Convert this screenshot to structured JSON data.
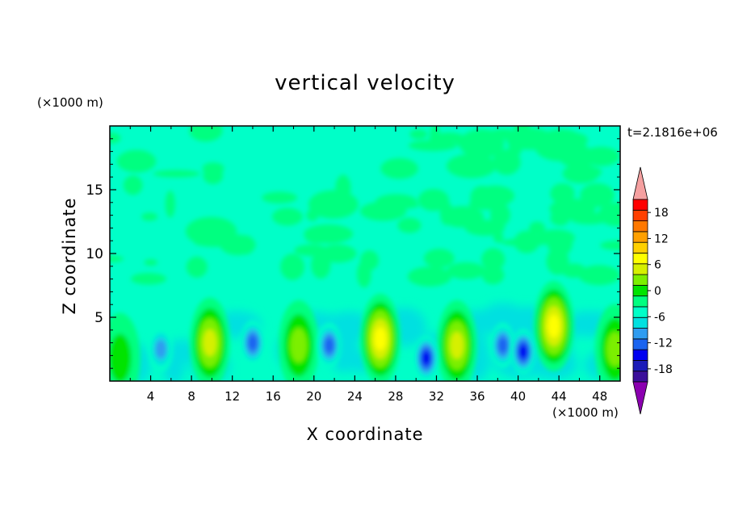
{
  "chart_data": {
    "type": "heatmap",
    "title": "vertical velocity",
    "xlabel": "X coordinate",
    "ylabel": "Z coordinate",
    "x_unit_label": "(×1000 m)",
    "y_unit_label": "(×1000 m)",
    "time_label": "t=2.1816e+06",
    "xlim": [
      0,
      50
    ],
    "ylim": [
      0,
      20
    ],
    "x_ticks": [
      4,
      8,
      12,
      16,
      20,
      24,
      28,
      32,
      36,
      40,
      44,
      48
    ],
    "y_ticks": [
      5,
      10,
      15
    ],
    "colorbar": {
      "range": [
        -21,
        21
      ],
      "step": 3,
      "tick_labels": [
        "18",
        "12",
        "6",
        "0",
        "-6",
        "-12",
        "-18"
      ],
      "tick_values": [
        18,
        12,
        6,
        0,
        -6,
        -12,
        -18
      ],
      "colors": [
        "#8b00b0",
        "#3b0f9a",
        "#1c1cb8",
        "#0000f0",
        "#1a64f0",
        "#2f9cf0",
        "#00e0e0",
        "#00ffc8",
        "#00ff80",
        "#00e400",
        "#7cef00",
        "#d6f000",
        "#ffff00",
        "#ffd000",
        "#ffa000",
        "#ff7800",
        "#ff4000",
        "#ff0000",
        "#f5a0a0"
      ]
    },
    "updraft_cells": [
      {
        "x": 1,
        "z": 1.8,
        "w": 5
      },
      {
        "x": 9.8,
        "z": 3.0,
        "w": 10
      },
      {
        "x": 18.5,
        "z": 2.8,
        "w": 6
      },
      {
        "x": 26.5,
        "z": 3.3,
        "w": 12
      },
      {
        "x": 34,
        "z": 2.8,
        "w": 10
      },
      {
        "x": 43.5,
        "z": 4.3,
        "w": 13
      },
      {
        "x": 49.5,
        "z": 2.5,
        "w": 7
      }
    ],
    "downdraft_cells": [
      {
        "x": 5,
        "z": 2.5,
        "w": -6
      },
      {
        "x": 14,
        "z": 3.0,
        "w": -11
      },
      {
        "x": 21.5,
        "z": 2.8,
        "w": -11
      },
      {
        "x": 31,
        "z": 1.8,
        "w": -12
      },
      {
        "x": 38.5,
        "z": 2.8,
        "w": -9
      },
      {
        "x": 40.5,
        "z": 2.3,
        "w": -14
      }
    ]
  }
}
